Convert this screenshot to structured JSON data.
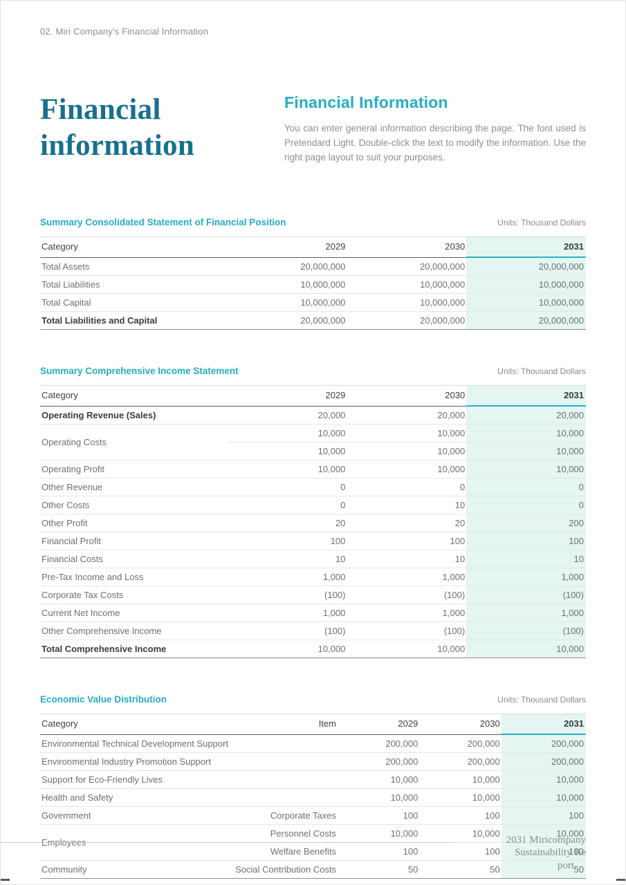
{
  "colors": {
    "accent_teal": "#23aec1",
    "title_blue": "#17708f",
    "highlight_column_bg": "#e4f5f2"
  },
  "eyebrow": "02. Miri Company's Financial Information",
  "hero": {
    "title_line1": "Financial",
    "title_line2": "information",
    "heading": "Financial Information",
    "body": "You can enter general information describing the page. The font used is Pretendard Light. Double-click the text to modify the information. Use the right page layout to suit your purposes."
  },
  "tables": [
    {
      "title": "Summary Consolidated Statement of Financial Position",
      "units": "Units: Thousand Dollars",
      "columns": [
        "Category",
        "2029",
        "2030",
        "2031"
      ],
      "rows": [
        {
          "cells": [
            "Total Assets",
            "20,000,000",
            "20,000,000",
            "20,000,000"
          ]
        },
        {
          "cells": [
            "Total Liabilities",
            "10,000,000",
            "10,000,000",
            "10,000,000"
          ]
        },
        {
          "cells": [
            "Total Capital",
            "10,000,000",
            "10,000,000",
            "10,000,000"
          ]
        },
        {
          "cells": [
            "Total Liabilities and Capital",
            "20,000,000",
            "20,000,000",
            "20,000,000"
          ],
          "bold": true
        }
      ]
    },
    {
      "title": "Summary Comprehensive Income Statement",
      "units": "Units: Thousand Dollars",
      "columns": [
        "Category",
        "2029",
        "2030",
        "2031"
      ],
      "rows": [
        {
          "cells": [
            "Operating Revenue (Sales)",
            "20,000",
            "20,000",
            "20,000"
          ],
          "bold": true
        },
        {
          "cells": [
            {
              "t": "Operating Costs",
              "rowspan": 2
            },
            "10,000",
            "10,000",
            "10,000"
          ]
        },
        {
          "cells": [
            "10,000",
            "10,000",
            "10,000"
          ]
        },
        {
          "cells": [
            "Operating Profit",
            "10,000",
            "10,000",
            "10,000"
          ]
        },
        {
          "cells": [
            "Other Revenue",
            "0",
            "0",
            "0"
          ]
        },
        {
          "cells": [
            "Other Costs",
            "0",
            "10",
            "0"
          ]
        },
        {
          "cells": [
            "Other Profit",
            "20",
            "20",
            "200"
          ]
        },
        {
          "cells": [
            "Financial Profit",
            "100",
            "100",
            "100"
          ]
        },
        {
          "cells": [
            "Financial Costs",
            "10",
            "10",
            "10"
          ]
        },
        {
          "cells": [
            "Pre-Tax Income and Loss",
            "1,000",
            "1,000",
            "1,000"
          ]
        },
        {
          "cells": [
            "Corporate Tax Costs",
            "(100)",
            "(100)",
            "(100)"
          ]
        },
        {
          "cells": [
            "Current Net Income",
            "1,000",
            "1,000",
            "1,000"
          ]
        },
        {
          "cells": [
            "Other Comprehensive Income",
            "(100)",
            "(100)",
            "(100)"
          ]
        },
        {
          "cells": [
            "Total Comprehensive Income",
            "10,000",
            "10,000",
            "10,000"
          ],
          "bold": true
        }
      ]
    },
    {
      "title": "Economic Value Distribution",
      "units": "Units: Thousand Dollars",
      "columns": [
        "Category",
        "Item",
        "2029",
        "2030",
        "2031"
      ],
      "rows": [
        {
          "cells": [
            "Environmental Technical Development Support",
            "",
            "200,000",
            "200,000",
            "200,000"
          ]
        },
        {
          "cells": [
            "Environmental Industry Promotion Support",
            "",
            "200,000",
            "200,000",
            "200,000"
          ]
        },
        {
          "cells": [
            "Support for Eco-Friendly Lives",
            "",
            "10,000",
            "10,000",
            "10,000"
          ]
        },
        {
          "cells": [
            "Health and Safety",
            "",
            "10,000",
            "10,000",
            "10,000"
          ]
        },
        {
          "cells": [
            "Government",
            "Corporate Taxes",
            "100",
            "100",
            "100"
          ]
        },
        {
          "cells": [
            {
              "t": "Employees",
              "rowspan": 2
            },
            "Personnel Costs",
            "10,000",
            "10,000",
            "10,000"
          ]
        },
        {
          "cells": [
            "Welfare Benefits",
            "100",
            "100",
            "100"
          ]
        },
        {
          "cells": [
            "Community",
            "Social Contribution Costs",
            "50",
            "50",
            "50"
          ]
        }
      ]
    }
  ],
  "footer": {
    "line1": "2031 Miricompany Sustainability Re",
    "line2": "port"
  }
}
